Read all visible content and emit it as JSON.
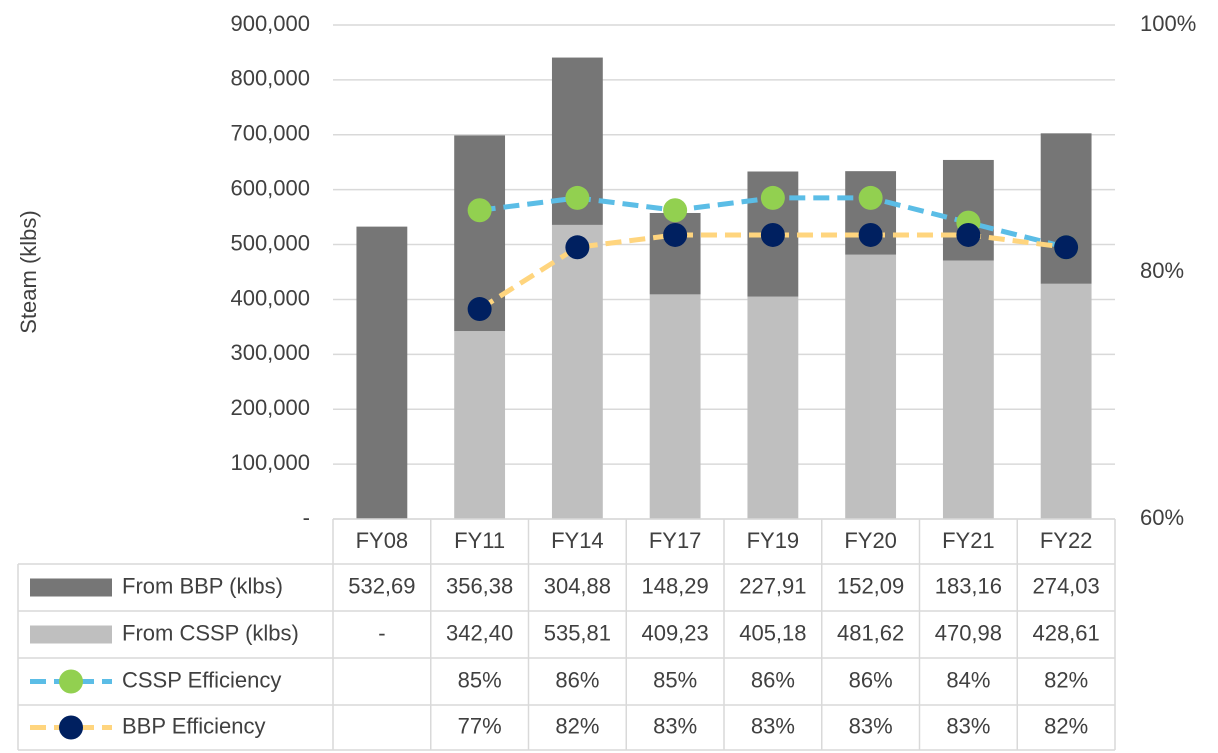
{
  "chart_data": {
    "type": "bar",
    "ylabel": "Steam (klbs)",
    "categories": [
      "FY08",
      "FY11",
      "FY14",
      "FY17",
      "FY19",
      "FY20",
      "FY21",
      "FY22"
    ],
    "ylim": [
      0,
      900000
    ],
    "yticks": [
      {
        "value": 0,
        "label": "-"
      },
      {
        "value": 100000,
        "label": "100,000"
      },
      {
        "value": 200000,
        "label": "200,000"
      },
      {
        "value": 300000,
        "label": "300,000"
      },
      {
        "value": 400000,
        "label": "400,000"
      },
      {
        "value": 500000,
        "label": "500,000"
      },
      {
        "value": 600000,
        "label": "600,000"
      },
      {
        "value": 700000,
        "label": "700,000"
      },
      {
        "value": 800000,
        "label": "800,000"
      },
      {
        "value": 900000,
        "label": "900,000"
      }
    ],
    "y2lim": [
      60,
      100
    ],
    "y2ticks": [
      {
        "value": 60,
        "label": "60%"
      },
      {
        "value": 80,
        "label": "80%"
      },
      {
        "value": 100,
        "label": "100%"
      }
    ],
    "series": [
      {
        "name": "From BBP (klbs)",
        "type": "bar",
        "color": "#767676",
        "values": [
          532690,
          356380,
          304880,
          148290,
          227910,
          152090,
          183160,
          274030
        ],
        "value_labels": [
          "532,69",
          "356,38",
          "304,88",
          "148,29",
          "227,91",
          "152,09",
          "183,16",
          "274,03"
        ]
      },
      {
        "name": "From CSSP (klbs)",
        "type": "bar",
        "color": "#bfbfbf",
        "values": [
          null,
          342400,
          535810,
          409230,
          405180,
          481620,
          470980,
          428610
        ],
        "value_labels": [
          "-",
          "342,40",
          "535,81",
          "409,23",
          "405,18",
          "481,62",
          "470,98",
          "428,61"
        ]
      },
      {
        "name": "CSSP Efficiency",
        "type": "line",
        "axis": "y2",
        "color": "#5bbde6",
        "marker_color": "#92d050",
        "values": [
          null,
          85,
          86,
          85,
          86,
          86,
          84,
          82
        ],
        "value_labels": [
          null,
          "85%",
          "86%",
          "85%",
          "86%",
          "86%",
          "84%",
          "82%"
        ]
      },
      {
        "name": "BBP Efficiency",
        "type": "line",
        "axis": "y2",
        "color": "#ffd57e",
        "marker_color": "#002060",
        "values": [
          null,
          77,
          82,
          83,
          83,
          83,
          83,
          82
        ],
        "value_labels": [
          null,
          "77%",
          "82%",
          "83%",
          "83%",
          "83%",
          "83%",
          "82%"
        ]
      }
    ]
  }
}
